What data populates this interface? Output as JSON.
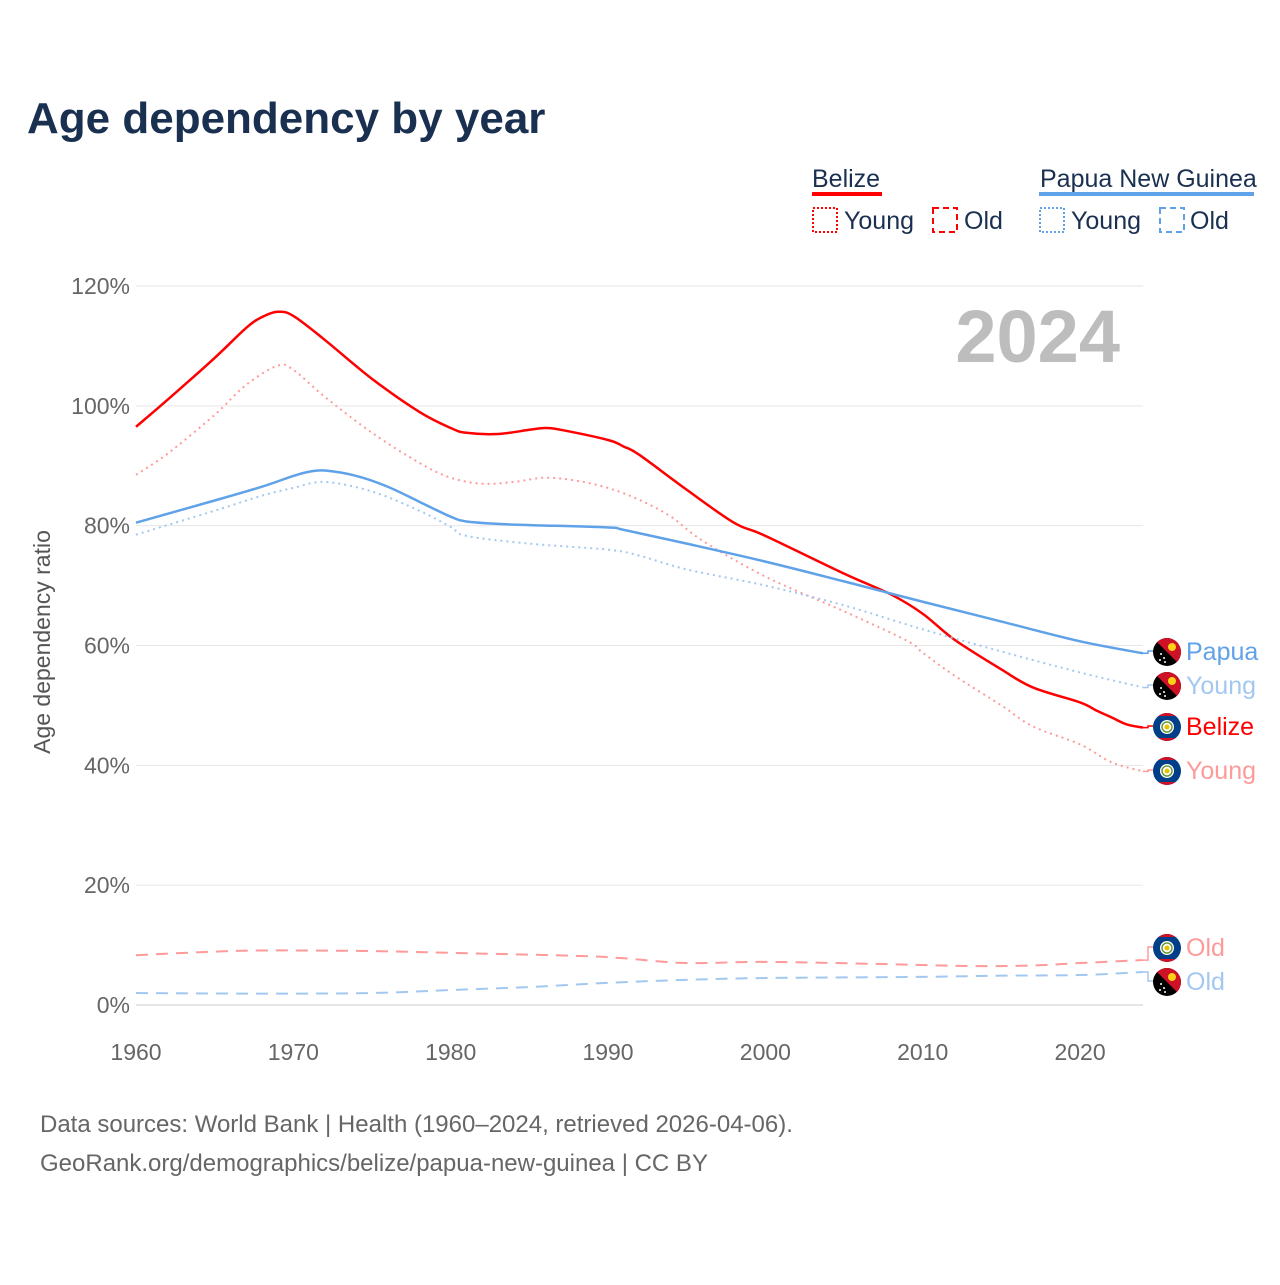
{
  "chart_data": {
    "type": "line",
    "title": "Age dependency by year",
    "ylabel": "Age dependency ratio",
    "xlabel": "",
    "year_watermark": "2024",
    "xlim": [
      1960,
      2024
    ],
    "ylim": [
      0,
      120
    ],
    "x_ticks": [
      "1960",
      "1970",
      "1980",
      "1990",
      "2000",
      "2010",
      "2020"
    ],
    "x_tick_values": [
      1960,
      1970,
      1980,
      1990,
      2000,
      2010,
      2020
    ],
    "y_ticks": [
      "0%",
      "20%",
      "40%",
      "60%",
      "80%",
      "100%",
      "120%"
    ],
    "y_tick_values": [
      0,
      20,
      40,
      60,
      80,
      100,
      120
    ],
    "grid": true,
    "legend": {
      "placement": "top-right",
      "groups": [
        {
          "country": "Belize",
          "color": "#ff0000",
          "young": "Young",
          "old": "Old"
        },
        {
          "country": "Papua New Guinea",
          "color": "#5fa2e8",
          "young": "Young",
          "old": "Old"
        }
      ]
    },
    "series": [
      {
        "name": "Belize",
        "country": "Belize",
        "kind": "total",
        "end_label": "Belize",
        "color": "#ff0000",
        "dash": "solid",
        "points": [
          [
            1960,
            96.5
          ],
          [
            1962,
            101
          ],
          [
            1965,
            108
          ],
          [
            1967,
            113
          ],
          [
            1968,
            114.8
          ],
          [
            1969,
            115.7
          ],
          [
            1970,
            115
          ],
          [
            1972,
            111
          ],
          [
            1975,
            104.5
          ],
          [
            1978,
            99
          ],
          [
            1980,
            96.3
          ],
          [
            1981,
            95.5
          ],
          [
            1983,
            95.3
          ],
          [
            1985,
            96
          ],
          [
            1986,
            96.3
          ],
          [
            1987,
            96
          ],
          [
            1990,
            94.3
          ],
          [
            1991,
            93.2
          ],
          [
            1992,
            91.8
          ],
          [
            1995,
            86
          ],
          [
            1998,
            80.5
          ],
          [
            2000,
            78.3
          ],
          [
            2005,
            72
          ],
          [
            2008,
            68.5
          ],
          [
            2010,
            65.3
          ],
          [
            2012,
            61
          ],
          [
            2015,
            56
          ],
          [
            2017,
            53
          ],
          [
            2020,
            50.5
          ],
          [
            2021,
            49.2
          ],
          [
            2022,
            48
          ],
          [
            2023,
            46.8
          ],
          [
            2024,
            46.3
          ]
        ]
      },
      {
        "name": "Belize Young",
        "country": "Belize",
        "kind": "young",
        "end_label": "Young",
        "color": "#ff9a9a",
        "dash": "dotted",
        "points": [
          [
            1960,
            88.5
          ],
          [
            1962,
            92
          ],
          [
            1965,
            98.5
          ],
          [
            1967,
            103.5
          ],
          [
            1969,
            106.7
          ],
          [
            1970,
            106
          ],
          [
            1972,
            101.5
          ],
          [
            1975,
            95.5
          ],
          [
            1978,
            90.5
          ],
          [
            1980,
            88
          ],
          [
            1982,
            87
          ],
          [
            1984,
            87.3
          ],
          [
            1986,
            88
          ],
          [
            1988,
            87.5
          ],
          [
            1990,
            86.3
          ],
          [
            1992,
            84.3
          ],
          [
            1994,
            81.5
          ],
          [
            1996,
            77.5
          ],
          [
            2000,
            71.5
          ],
          [
            2005,
            65.7
          ],
          [
            2009,
            60.8
          ],
          [
            2010,
            58.8
          ],
          [
            2012,
            55
          ],
          [
            2015,
            50
          ],
          [
            2017,
            46.5
          ],
          [
            2020,
            43.5
          ],
          [
            2022,
            40.5
          ],
          [
            2024,
            39
          ]
        ]
      },
      {
        "name": "Belize Old",
        "country": "Belize",
        "kind": "old",
        "end_label": "Old",
        "color": "#ff9a9a",
        "dash": "dashed",
        "points": [
          [
            1960,
            8.3
          ],
          [
            1964,
            8.8
          ],
          [
            1968,
            9.1
          ],
          [
            1975,
            9
          ],
          [
            1980,
            8.7
          ],
          [
            1988,
            8.2
          ],
          [
            1991,
            7.8
          ],
          [
            1995,
            7
          ],
          [
            2000,
            7.2
          ],
          [
            2008,
            6.8
          ],
          [
            2013,
            6.5
          ],
          [
            2017,
            6.6
          ],
          [
            2020,
            7
          ],
          [
            2024,
            7.5
          ]
        ]
      },
      {
        "name": "Papua New Guinea",
        "country": "Papua New Guinea",
        "kind": "total",
        "end_label": "Papua",
        "color": "#5fa2e8",
        "dash": "solid",
        "points": [
          [
            1960,
            80.5
          ],
          [
            1965,
            84.2
          ],
          [
            1968,
            86.5
          ],
          [
            1970,
            88.3
          ],
          [
            1971,
            89
          ],
          [
            1972,
            89.2
          ],
          [
            1974,
            88.3
          ],
          [
            1976,
            86.5
          ],
          [
            1978,
            84
          ],
          [
            1980,
            81.5
          ],
          [
            1981,
            80.7
          ],
          [
            1983,
            80.3
          ],
          [
            1985,
            80.1
          ],
          [
            1990,
            79.7
          ],
          [
            1991,
            79.3
          ],
          [
            1995,
            77
          ],
          [
            2000,
            74
          ],
          [
            2005,
            70.7
          ],
          [
            2010,
            67.3
          ],
          [
            2015,
            64
          ],
          [
            2020,
            60.7
          ],
          [
            2024,
            58.7
          ]
        ]
      },
      {
        "name": "Papua New Guinea Young",
        "country": "Papua New Guinea",
        "kind": "young",
        "end_label": "Young",
        "color": "#a3c8f0",
        "dash": "dotted",
        "points": [
          [
            1960,
            78.5
          ],
          [
            1965,
            82.5
          ],
          [
            1968,
            85
          ],
          [
            1970,
            86.3
          ],
          [
            1972,
            87.3
          ],
          [
            1975,
            85.7
          ],
          [
            1978,
            82.5
          ],
          [
            1980,
            79.8
          ],
          [
            1981,
            78.3
          ],
          [
            1985,
            77
          ],
          [
            1990,
            76
          ],
          [
            1992,
            75
          ],
          [
            1995,
            72.7
          ],
          [
            2000,
            70
          ],
          [
            2005,
            66.7
          ],
          [
            2010,
            62.7
          ],
          [
            2015,
            59
          ],
          [
            2020,
            55.5
          ],
          [
            2024,
            53
          ]
        ]
      },
      {
        "name": "Papua New Guinea Old",
        "country": "Papua New Guinea",
        "kind": "old",
        "end_label": "Old",
        "color": "#a3c8f0",
        "dash": "dashed",
        "points": [
          [
            1960,
            2
          ],
          [
            1968,
            1.9
          ],
          [
            1975,
            2
          ],
          [
            1980,
            2.5
          ],
          [
            1985,
            3
          ],
          [
            1990,
            3.7
          ],
          [
            1995,
            4.2
          ],
          [
            2000,
            4.5
          ],
          [
            2010,
            4.7
          ],
          [
            2015,
            4.9
          ],
          [
            2020,
            5
          ],
          [
            2024,
            5.5
          ]
        ]
      }
    ],
    "source_line1": "Data sources: World Bank | Health (1960–2024, retrieved 2026-04-06).",
    "source_line2": "GeoRank.org/demographics/belize/papua-new-guinea | CC BY"
  }
}
